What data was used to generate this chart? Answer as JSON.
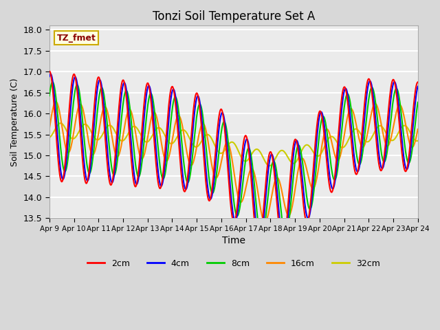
{
  "title": "Tonzi Soil Temperature Set A",
  "xlabel": "Time",
  "ylabel": "Soil Temperature (C)",
  "ylim": [
    13.5,
    18.1
  ],
  "xtick_labels": [
    "Apr 9",
    "Apr 10",
    "Apr 11",
    "Apr 12",
    "Apr 13",
    "Apr 14",
    "Apr 15",
    "Apr 16",
    "Apr 17",
    "Apr 18",
    "Apr 19",
    "Apr 20",
    "Apr 21",
    "Apr 22",
    "Apr 23",
    "Apr 24"
  ],
  "colors": {
    "2cm": "#ff0000",
    "4cm": "#0000ff",
    "8cm": "#00cc00",
    "16cm": "#ff8800",
    "32cm": "#cccc00"
  },
  "legend_label": "TZ_fmet",
  "fig_facecolor": "#d8d8d8",
  "ax_facecolor": "#ebebeb",
  "grid_color": "#ffffff",
  "line_width": 1.5,
  "n_days": 15
}
